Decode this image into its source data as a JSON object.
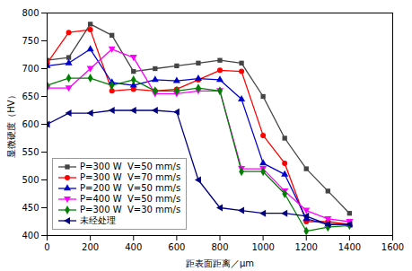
{
  "chart_data": {
    "type": "line",
    "xlabel": "距表面距离／μm",
    "ylabel": "显微硬度（HV）",
    "x": [
      0,
      100,
      200,
      300,
      400,
      500,
      600,
      700,
      800,
      900,
      1000,
      1100,
      1200,
      1300,
      1400
    ],
    "series": [
      {
        "name": "P=300 W  V=50 mm/s",
        "color": "#444444",
        "marker": "square",
        "values": [
          715,
          720,
          780,
          760,
          695,
          700,
          705,
          710,
          715,
          710,
          650,
          575,
          520,
          480,
          440
        ]
      },
      {
        "name": "P=300 W  V=70 mm/s",
        "color": "#ff0000",
        "marker": "circle",
        "values": [
          710,
          765,
          770,
          660,
          663,
          660,
          663,
          680,
          697,
          695,
          580,
          530,
          425,
          425,
          420
        ]
      },
      {
        "name": "P=200 W  V=50 mm/s",
        "color": "#0000cc",
        "marker": "triangle-up",
        "values": [
          705,
          710,
          735,
          675,
          670,
          680,
          678,
          682,
          680,
          645,
          530,
          510,
          430,
          420,
          420
        ]
      },
      {
        "name": "P=400 W  V=50 mm/s",
        "color": "#ff00ff",
        "marker": "triangle-down",
        "values": [
          665,
          665,
          700,
          735,
          720,
          655,
          655,
          660,
          660,
          520,
          520,
          480,
          445,
          430,
          425
        ]
      },
      {
        "name": "P=300 W  V=30 mm/s",
        "color": "#008000",
        "marker": "diamond",
        "values": [
          670,
          683,
          683,
          670,
          680,
          660,
          660,
          665,
          660,
          515,
          515,
          475,
          408,
          415,
          418
        ]
      },
      {
        "name": "未经处理",
        "color": "#000080",
        "marker": "triangle-left",
        "values": [
          600,
          620,
          620,
          625,
          625,
          625,
          622,
          500,
          450,
          445,
          440,
          440,
          435,
          420,
          420
        ]
      }
    ],
    "xlim": [
      0,
      1600
    ],
    "ylim": [
      400,
      800
    ],
    "xticks": [
      0,
      200,
      400,
      600,
      800,
      1000,
      1200,
      1400,
      1600
    ],
    "yticks": [
      400,
      450,
      500,
      550,
      600,
      650,
      700,
      750,
      800
    ],
    "grid": false,
    "legend": "lower left"
  }
}
